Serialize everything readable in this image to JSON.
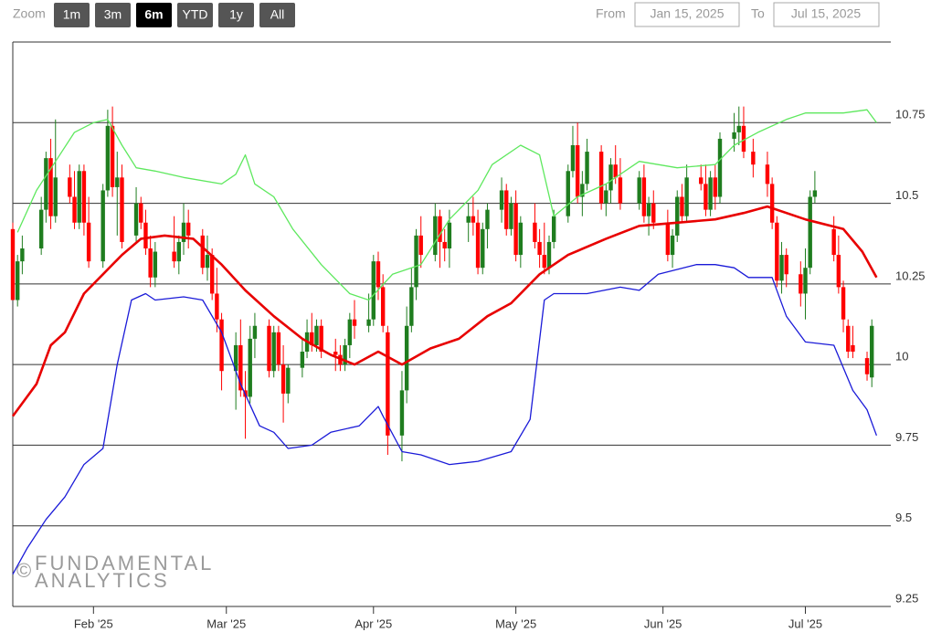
{
  "range_selector": {
    "zoom_label": "Zoom",
    "buttons": [
      "1m",
      "3m",
      "6m",
      "YTD",
      "1y",
      "All"
    ],
    "selected": 2,
    "from_label": "From",
    "from": "Jan 15, 2025",
    "to_label": "To",
    "to": "Jul 15, 2025"
  },
  "watermark": {
    "symbol": "©",
    "lines": [
      "FUNDAMENTAL",
      "ANALYTICS"
    ]
  },
  "chart_data": {
    "type": "candlestick",
    "xlim": [
      0,
      185
    ],
    "xticks": [
      {
        "value": 17,
        "label": "Feb '25"
      },
      {
        "value": 45,
        "label": "Mar '25"
      },
      {
        "value": 76,
        "label": "Apr '25"
      },
      {
        "value": 106,
        "label": "May '25"
      },
      {
        "value": 137,
        "label": "Jun '25"
      },
      {
        "value": 167,
        "label": "Jul '25"
      }
    ],
    "ylim": [
      9.25,
      11
    ],
    "yticks": [
      9.25,
      9.5,
      9.75,
      10,
      10.25,
      10.5,
      10.75
    ],
    "grid": true,
    "up_color": "#1f7d1f",
    "down_color": "#ff0000",
    "x": [
      0,
      1,
      2,
      6,
      7,
      8,
      9,
      12,
      13,
      14,
      15,
      16,
      19,
      20,
      21,
      22,
      23,
      26,
      27,
      28,
      29,
      30,
      34,
      35,
      36,
      37,
      40,
      41,
      42,
      43,
      44,
      47,
      48,
      49,
      50,
      51,
      54,
      55,
      56,
      57,
      58,
      61,
      62,
      63,
      64,
      65,
      68,
      69,
      70,
      71,
      72,
      75,
      76,
      77,
      78,
      79,
      82,
      83,
      84,
      85,
      86,
      89,
      90,
      91,
      92,
      96,
      97,
      98,
      99,
      100,
      103,
      104,
      105,
      106,
      107,
      110,
      111,
      112,
      113,
      114,
      117,
      118,
      119,
      120,
      121,
      124,
      125,
      126,
      127,
      128,
      132,
      133,
      134,
      135,
      138,
      139,
      140,
      141,
      142,
      145,
      146,
      147,
      148,
      149,
      152,
      153,
      154,
      156,
      159,
      160,
      161,
      162,
      163,
      166,
      167,
      168,
      169,
      173,
      174,
      175,
      176,
      177,
      180,
      181
    ],
    "ohlc": [
      [
        10.42,
        10.44,
        10.2,
        10.2
      ],
      [
        10.2,
        10.34,
        10.18,
        10.32
      ],
      [
        10.32,
        10.4,
        10.28,
        10.36
      ],
      [
        10.36,
        10.52,
        10.34,
        10.48
      ],
      [
        10.48,
        10.66,
        10.44,
        10.64
      ],
      [
        10.64,
        10.7,
        10.42,
        10.46
      ],
      [
        10.46,
        10.76,
        10.44,
        10.58
      ],
      [
        10.58,
        10.62,
        10.5,
        10.52
      ],
      [
        10.52,
        10.6,
        10.42,
        10.44
      ],
      [
        10.44,
        10.62,
        10.42,
        10.6
      ],
      [
        10.6,
        10.62,
        10.4,
        10.44
      ],
      [
        10.44,
        10.52,
        10.3,
        10.32
      ],
      [
        10.32,
        10.56,
        10.3,
        10.54
      ],
      [
        10.54,
        10.79,
        10.52,
        10.74
      ],
      [
        10.74,
        10.8,
        10.52,
        10.55
      ],
      [
        10.55,
        10.66,
        10.4,
        10.58
      ],
      [
        10.58,
        10.62,
        10.36,
        10.38
      ],
      [
        10.4,
        10.55,
        10.38,
        10.5
      ],
      [
        10.5,
        10.52,
        10.42,
        10.44
      ],
      [
        10.44,
        10.48,
        10.34,
        10.36
      ],
      [
        10.36,
        10.4,
        10.24,
        10.27
      ],
      [
        10.27,
        10.38,
        10.24,
        10.35
      ],
      [
        10.35,
        10.46,
        10.3,
        10.32
      ],
      [
        10.32,
        10.4,
        10.28,
        10.38
      ],
      [
        10.38,
        10.5,
        10.34,
        10.44
      ],
      [
        10.44,
        10.48,
        10.36,
        10.4
      ],
      [
        10.4,
        10.42,
        10.28,
        10.3
      ],
      [
        10.3,
        10.4,
        10.26,
        10.34
      ],
      [
        10.34,
        10.36,
        10.2,
        10.22
      ],
      [
        10.22,
        10.3,
        10.1,
        10.14
      ],
      [
        10.14,
        10.16,
        9.92,
        9.98
      ],
      [
        9.98,
        10.1,
        9.86,
        10.06
      ],
      [
        10.06,
        10.14,
        9.9,
        9.92
      ],
      [
        9.92,
        9.98,
        9.77,
        9.9
      ],
      [
        9.9,
        10.12,
        9.88,
        10.08
      ],
      [
        10.08,
        10.16,
        10.02,
        10.12
      ],
      [
        10.12,
        10.14,
        9.96,
        9.98
      ],
      [
        9.98,
        10.12,
        9.96,
        10.1
      ],
      [
        10.1,
        10.12,
        9.98,
        10.0
      ],
      [
        10.0,
        10.06,
        9.82,
        9.91
      ],
      [
        9.91,
        10.0,
        9.88,
        9.99
      ],
      [
        9.99,
        10.08,
        9.96,
        10.04
      ],
      [
        10.04,
        10.14,
        10.02,
        10.1
      ],
      [
        10.1,
        10.16,
        10.04,
        10.06
      ],
      [
        10.06,
        10.14,
        10.04,
        10.12
      ],
      [
        10.12,
        10.14,
        10.02,
        10.04
      ],
      [
        10.04,
        10.08,
        9.98,
        10.03
      ],
      [
        10.03,
        10.06,
        9.98,
        10.0
      ],
      [
        10.0,
        10.08,
        9.98,
        10.06
      ],
      [
        10.06,
        10.16,
        10.02,
        10.14
      ],
      [
        10.14,
        10.2,
        10.08,
        10.12
      ],
      [
        10.12,
        10.22,
        10.1,
        10.14
      ],
      [
        10.14,
        10.34,
        10.12,
        10.32
      ],
      [
        10.32,
        10.35,
        10.2,
        10.24
      ],
      [
        10.24,
        10.28,
        10.1,
        10.12
      ],
      [
        10.1,
        10.12,
        9.72,
        9.78
      ],
      [
        9.78,
        9.98,
        9.7,
        9.92
      ],
      [
        9.92,
        10.18,
        9.88,
        10.12
      ],
      [
        10.12,
        10.3,
        10.1,
        10.24
      ],
      [
        10.24,
        10.42,
        10.2,
        10.4
      ],
      [
        10.4,
        10.46,
        10.3,
        10.34
      ],
      [
        10.34,
        10.5,
        10.32,
        10.46
      ],
      [
        10.46,
        10.48,
        10.3,
        10.38
      ],
      [
        10.38,
        10.42,
        10.32,
        10.36
      ],
      [
        10.36,
        10.48,
        10.3,
        10.44
      ],
      [
        10.44,
        10.5,
        10.38,
        10.46
      ],
      [
        10.46,
        10.52,
        10.4,
        10.44
      ],
      [
        10.44,
        10.48,
        10.28,
        10.3
      ],
      [
        10.3,
        10.44,
        10.28,
        10.42
      ],
      [
        10.42,
        10.5,
        10.36,
        10.48
      ],
      [
        10.48,
        10.58,
        10.44,
        10.54
      ],
      [
        10.54,
        10.56,
        10.4,
        10.42
      ],
      [
        10.42,
        10.52,
        10.4,
        10.5
      ],
      [
        10.5,
        10.54,
        10.32,
        10.34
      ],
      [
        10.34,
        10.46,
        10.3,
        10.44
      ],
      [
        10.44,
        10.5,
        10.36,
        10.38
      ],
      [
        10.38,
        10.42,
        10.3,
        10.34
      ],
      [
        10.34,
        10.44,
        10.28,
        10.3
      ],
      [
        10.3,
        10.4,
        10.28,
        10.38
      ],
      [
        10.38,
        10.48,
        10.36,
        10.46
      ],
      [
        10.46,
        10.62,
        10.44,
        10.6
      ],
      [
        10.6,
        10.74,
        10.58,
        10.68
      ],
      [
        10.68,
        10.75,
        10.5,
        10.52
      ],
      [
        10.52,
        10.6,
        10.46,
        10.56
      ],
      [
        10.56,
        10.7,
        10.54,
        10.66
      ],
      [
        10.66,
        10.68,
        10.48,
        10.5
      ],
      [
        10.5,
        10.56,
        10.46,
        10.54
      ],
      [
        10.54,
        10.64,
        10.5,
        10.62
      ],
      [
        10.62,
        10.68,
        10.56,
        10.58
      ],
      [
        10.58,
        10.64,
        10.48,
        10.5
      ],
      [
        10.5,
        10.6,
        10.48,
        10.58
      ],
      [
        10.58,
        10.62,
        10.44,
        10.46
      ],
      [
        10.46,
        10.52,
        10.4,
        10.5
      ],
      [
        10.5,
        10.54,
        10.42,
        10.44
      ],
      [
        10.44,
        10.48,
        10.32,
        10.34
      ],
      [
        10.34,
        10.42,
        10.3,
        10.4
      ],
      [
        10.4,
        10.54,
        10.38,
        10.52
      ],
      [
        10.52,
        10.56,
        10.44,
        10.46
      ],
      [
        10.46,
        10.62,
        10.44,
        10.58
      ],
      [
        10.58,
        10.62,
        10.54,
        10.56
      ],
      [
        10.56,
        10.62,
        10.46,
        10.48
      ],
      [
        10.48,
        10.6,
        10.46,
        10.58
      ],
      [
        10.58,
        10.62,
        10.48,
        10.52
      ],
      [
        10.52,
        10.72,
        10.5,
        10.7
      ],
      [
        10.7,
        10.78,
        10.66,
        10.72
      ],
      [
        10.72,
        10.8,
        10.68,
        10.74
      ],
      [
        10.74,
        10.8,
        10.64,
        10.66
      ],
      [
        10.66,
        10.7,
        10.58,
        10.62
      ],
      [
        10.62,
        10.66,
        10.52,
        10.56
      ],
      [
        10.56,
        10.58,
        10.42,
        10.44
      ],
      [
        10.44,
        10.46,
        10.24,
        10.26
      ],
      [
        10.26,
        10.38,
        10.22,
        10.34
      ],
      [
        10.34,
        10.36,
        10.24,
        10.28
      ],
      [
        10.28,
        10.32,
        10.18,
        10.22
      ],
      [
        10.22,
        10.36,
        10.14,
        10.3
      ],
      [
        10.3,
        10.54,
        10.28,
        10.52
      ],
      [
        10.52,
        10.6,
        10.5,
        10.54
      ],
      [
        10.42,
        10.46,
        10.32,
        10.34
      ],
      [
        10.34,
        10.4,
        10.22,
        10.24
      ],
      [
        10.24,
        10.26,
        10.1,
        10.14
      ],
      [
        10.12,
        10.14,
        10.02,
        10.04
      ],
      [
        10.06,
        10.12,
        10.02,
        10.04
      ],
      [
        10.02,
        10.04,
        9.95,
        9.97
      ],
      [
        9.96,
        10.14,
        9.93,
        10.12
      ]
    ],
    "lines": [
      {
        "color": "#5ee85e",
        "width": 1.3,
        "x": [
          1,
          5,
          9,
          13,
          17,
          20,
          23,
          26,
          30,
          36,
          44,
          47,
          49,
          51,
          55,
          59,
          65,
          71,
          75,
          80,
          86,
          92,
          98,
          101,
          107,
          111,
          114,
          119,
          125,
          132,
          140,
          148,
          152,
          157,
          163,
          167,
          175,
          180,
          182
        ],
        "values": [
          10.41,
          10.54,
          10.63,
          10.72,
          10.75,
          10.76,
          10.68,
          10.61,
          10.6,
          10.58,
          10.56,
          10.59,
          10.65,
          10.56,
          10.52,
          10.42,
          10.31,
          10.22,
          10.2,
          10.28,
          10.31,
          10.45,
          10.54,
          10.62,
          10.68,
          10.65,
          10.46,
          10.52,
          10.56,
          10.63,
          10.61,
          10.62,
          10.68,
          10.72,
          10.76,
          10.78,
          10.78,
          10.79,
          10.75
        ]
      },
      {
        "color": "#e80000",
        "width": 2.6,
        "x": [
          0,
          2,
          5,
          8,
          11,
          15,
          19,
          23,
          27,
          32,
          38,
          44,
          49,
          55,
          61,
          67,
          72,
          77,
          82,
          88,
          94,
          100,
          105,
          111,
          117,
          125,
          132,
          140,
          148,
          154,
          159,
          167,
          175,
          179,
          182
        ],
        "values": [
          9.84,
          9.88,
          9.94,
          10.06,
          10.1,
          10.22,
          10.28,
          10.34,
          10.39,
          10.4,
          10.39,
          10.31,
          10.23,
          10.15,
          10.08,
          10.03,
          10.0,
          10.04,
          10.0,
          10.05,
          10.08,
          10.15,
          10.19,
          10.28,
          10.34,
          10.39,
          10.43,
          10.44,
          10.45,
          10.47,
          10.49,
          10.45,
          10.42,
          10.35,
          10.27
        ]
      },
      {
        "color": "#1a1ad8",
        "width": 1.3,
        "x": [
          0,
          3,
          7,
          11,
          15,
          19,
          22,
          25,
          28,
          30,
          36,
          40,
          44,
          48,
          52,
          55,
          58,
          63,
          67,
          73,
          77,
          78,
          82,
          86,
          92,
          98,
          105,
          109,
          112,
          114,
          121,
          128,
          132,
          136,
          144,
          148,
          152,
          155,
          160,
          163,
          167,
          173,
          177,
          180,
          182
        ],
        "values": [
          9.35,
          9.43,
          9.52,
          9.59,
          9.69,
          9.74,
          10.0,
          10.2,
          10.22,
          10.2,
          10.21,
          10.2,
          10.1,
          9.94,
          9.81,
          9.79,
          9.74,
          9.75,
          9.79,
          9.81,
          9.87,
          9.84,
          9.73,
          9.72,
          9.69,
          9.7,
          9.73,
          9.83,
          10.2,
          10.22,
          10.22,
          10.24,
          10.23,
          10.28,
          10.31,
          10.31,
          10.3,
          10.27,
          10.27,
          10.15,
          10.07,
          10.06,
          9.92,
          9.86,
          9.78
        ]
      }
    ]
  }
}
